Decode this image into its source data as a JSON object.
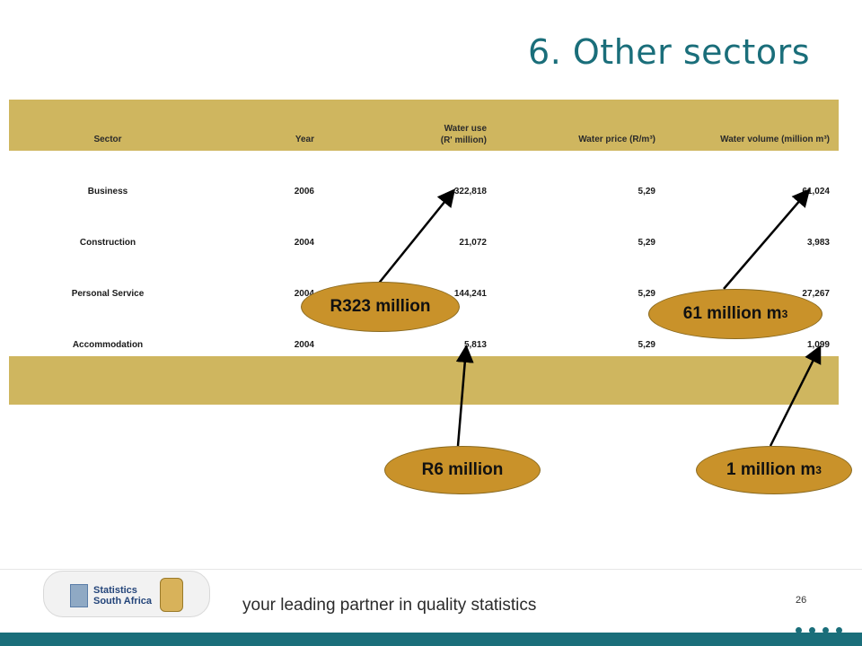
{
  "title": "6. Other sectors",
  "table": {
    "headers": {
      "sector": "Sector",
      "year": "Year",
      "use_line1": "Water use",
      "use_line2": "(R' million)",
      "price": "Water price (R/m³)",
      "volume": "Water volume (million m³)"
    },
    "rows": [
      {
        "sector": "Business",
        "year": "2006",
        "use": "322,818",
        "price": "5,29",
        "volume": "61,024"
      },
      {
        "sector": "Construction",
        "year": "2004",
        "use": "21,072",
        "price": "5,29",
        "volume": "3,983"
      },
      {
        "sector": "Personal Service",
        "year": "2004",
        "use": "144,241",
        "price": "5,29",
        "volume": "27,267"
      },
      {
        "sector": "Accommodation",
        "year": "2004",
        "use": "5,813",
        "price": "5,29",
        "volume": "1,099"
      }
    ]
  },
  "callouts": {
    "r323": "R323 million",
    "m61": "61 million m",
    "r6": "R6 million",
    "m1": "1 million m",
    "sup": "3"
  },
  "footer": {
    "logo_line1": "Statistics",
    "logo_line2": "South Africa",
    "tagline": "your leading partner in quality statistics",
    "page_number": "26"
  },
  "colors": {
    "title": "#1a6e7a",
    "table_band": "#cfb65f",
    "callout": "#c9922a",
    "footer_bar": "#1a6e7a"
  }
}
